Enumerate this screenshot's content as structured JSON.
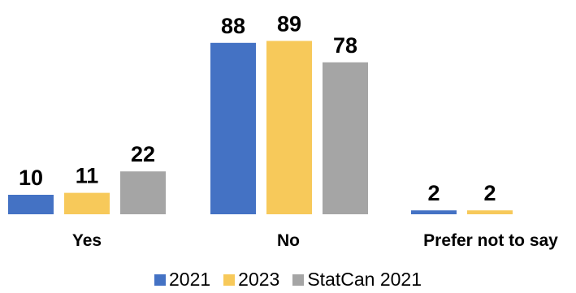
{
  "chart_data": {
    "type": "bar",
    "categories": [
      "Yes",
      "No",
      "Prefer not to say"
    ],
    "series": [
      {
        "name": "2021",
        "color": "#4472c4",
        "values": [
          10,
          88,
          2
        ]
      },
      {
        "name": "2023",
        "color": "#f7c95a",
        "values": [
          11,
          89,
          2
        ]
      },
      {
        "name": "StatCan 2021",
        "color": "#a5a5a5",
        "values": [
          22,
          78,
          null
        ]
      }
    ],
    "data_labels": true,
    "grid": false,
    "legend_position": "bottom"
  }
}
